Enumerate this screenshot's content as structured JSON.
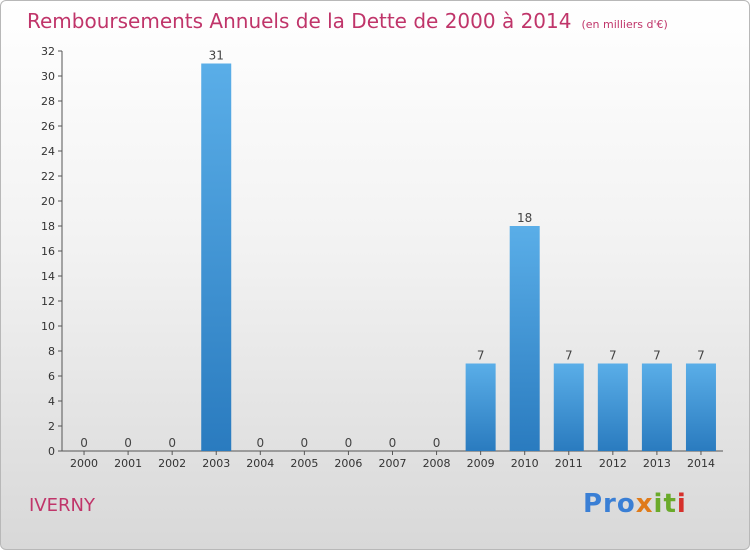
{
  "title": "Remboursements Annuels de la Dette de 2000 à 2014",
  "subtitle": "(en milliers d'€)",
  "commune": "IVERNY",
  "logo": {
    "p1": "Pro",
    "p2": "x",
    "p3": "it",
    "p4": "i"
  },
  "colors": {
    "title": "#c0356a",
    "bar_top": "#5aaee8",
    "bar_bottom": "#2a7bbf"
  },
  "chart_data": {
    "type": "bar",
    "categories": [
      "2000",
      "2001",
      "2002",
      "2003",
      "2004",
      "2005",
      "2006",
      "2007",
      "2008",
      "2009",
      "2010",
      "2011",
      "2012",
      "2013",
      "2014"
    ],
    "values": [
      0,
      0,
      0,
      31,
      0,
      0,
      0,
      0,
      0,
      7,
      18,
      7,
      7,
      7,
      7
    ],
    "ylim": [
      0,
      32
    ],
    "yticks": [
      0,
      2,
      4,
      6,
      8,
      10,
      12,
      14,
      16,
      18,
      20,
      22,
      24,
      26,
      28,
      30,
      32
    ],
    "grid": false,
    "legend": "none"
  }
}
